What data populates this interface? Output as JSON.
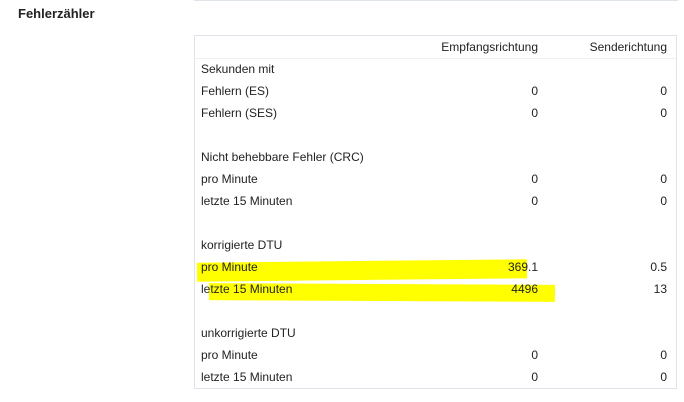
{
  "title": "Fehlerzähler",
  "columns": [
    "Empfangsrichtung",
    "Senderichtung"
  ],
  "highlight_color": "#ffff00",
  "rows": [
    {
      "label": "Sekunden mit",
      "rx": "",
      "tx": ""
    },
    {
      "label": "Fehlern (ES)",
      "rx": "0",
      "tx": "0"
    },
    {
      "label": "Fehlern (SES)",
      "rx": "0",
      "tx": "0"
    },
    {
      "label": "",
      "rx": "",
      "tx": ""
    },
    {
      "label": "Nicht behebbare Fehler (CRC)",
      "rx": "",
      "tx": ""
    },
    {
      "label": "pro Minute",
      "rx": "0",
      "tx": "0"
    },
    {
      "label": "letzte 15 Minuten",
      "rx": "0",
      "tx": "0"
    },
    {
      "label": "",
      "rx": "",
      "tx": ""
    },
    {
      "label": "korrigierte DTU",
      "rx": "",
      "tx": ""
    },
    {
      "label": "pro Minute",
      "rx": "369.1",
      "tx": "0.5"
    },
    {
      "label": "letzte 15 Minuten",
      "rx": "4496",
      "tx": "13"
    },
    {
      "label": "",
      "rx": "",
      "tx": ""
    },
    {
      "label": "unkorrigierte DTU",
      "rx": "",
      "tx": ""
    },
    {
      "label": "pro Minute",
      "rx": "0",
      "tx": "0"
    },
    {
      "label": "letzte 15 Minuten",
      "rx": "0",
      "tx": "0"
    }
  ]
}
